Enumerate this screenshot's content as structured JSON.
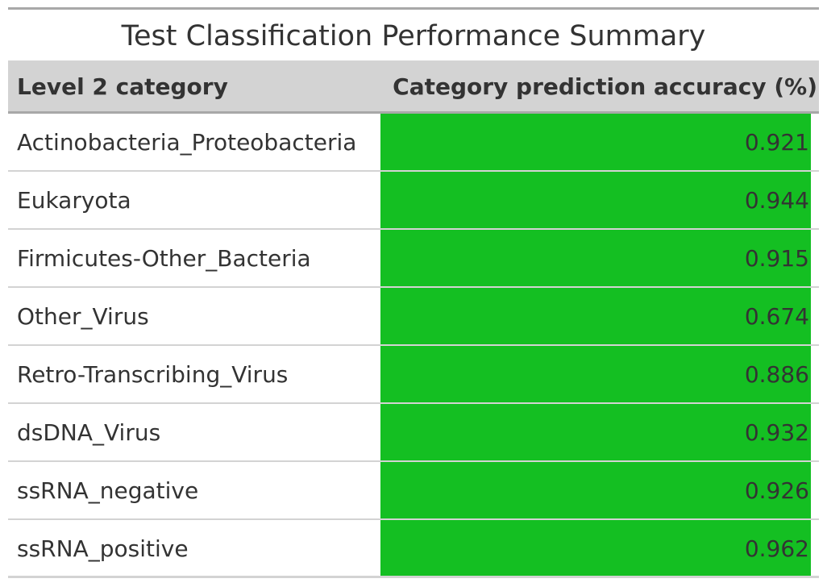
{
  "table": {
    "title": "Test Classification Performance Summary",
    "columns": [
      "Level 2 category",
      "Category prediction accuracy (%)"
    ],
    "fill_color": "#14bf22"
  },
  "chart_data": {
    "type": "table",
    "title": "Test Classification Performance Summary",
    "columns": [
      "Level 2 category",
      "Category prediction accuracy (%)"
    ],
    "rows": [
      {
        "category": "Actinobacteria_Proteobacteria",
        "accuracy": "0.921"
      },
      {
        "category": "Eukaryota",
        "accuracy": "0.944"
      },
      {
        "category": "Firmicutes-Other_Bacteria",
        "accuracy": "0.915"
      },
      {
        "category": "Other_Virus",
        "accuracy": "0.674"
      },
      {
        "category": "Retro-Transcribing_Virus",
        "accuracy": "0.886"
      },
      {
        "category": "dsDNA_Virus",
        "accuracy": "0.932"
      },
      {
        "category": "ssRNA_negative",
        "accuracy": "0.926"
      },
      {
        "category": "ssRNA_positive",
        "accuracy": "0.962"
      }
    ]
  }
}
